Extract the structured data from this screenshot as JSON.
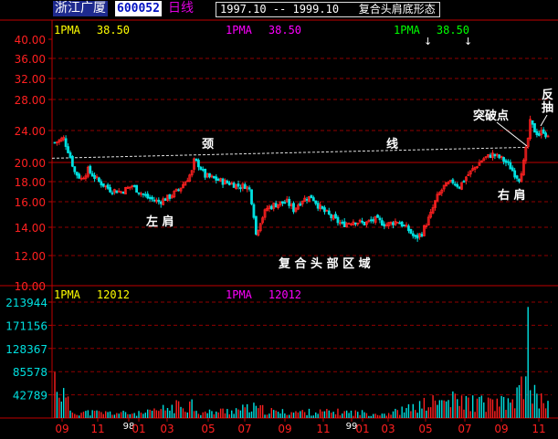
{
  "header": {
    "stock_name": "浙江广厦",
    "stock_code": "600052",
    "period": "日线",
    "date_range": "1997.10 -- 1999.10",
    "pattern_title": "复合头肩底形态"
  },
  "price_panel": {
    "ma_labels": [
      {
        "name": "1PMA",
        "value": "38.50",
        "color": "#ffff00"
      },
      {
        "name": "1PMA",
        "value": "38.50",
        "color": "#ff00ff"
      },
      {
        "name": "1PMA",
        "value": "38.50",
        "color": "#00ff00"
      }
    ],
    "arrows": [
      "↓",
      "↓"
    ],
    "annotations": {
      "neck": "颈",
      "line": "线",
      "left_shoulder": "左 肩",
      "right_shoulder": "右 肩",
      "head_zone": "复 合 头 部 区 域",
      "breakout": "突破点",
      "pullback": [
        "反",
        "抽"
      ]
    }
  },
  "volume_panel": {
    "ma_labels": [
      {
        "name": "1PMA",
        "value": "12012",
        "color": "#ffff00"
      },
      {
        "name": "1PMA",
        "value": "12012",
        "color": "#ff00ff"
      }
    ]
  },
  "colors": {
    "axis": "#c00000",
    "grid": "#900000",
    "up": "#ff2020",
    "down": "#00e0e0",
    "neckline": "#e0e0e0",
    "annotation": "#ffffff"
  },
  "chart_data": [
    {
      "type": "candlestick",
      "ylim": [
        10,
        40
      ],
      "y_ticks": [
        "40.00",
        "36.00",
        "32.00",
        "28.00",
        "24.00",
        "20.00",
        "18.00",
        "16.00",
        "14.00",
        "12.00",
        "10.00"
      ],
      "neckline": 20.3,
      "price_path": [
        [
          0,
          22.5
        ],
        [
          4,
          23.0
        ],
        [
          6,
          21.5
        ],
        [
          9,
          19.0
        ],
        [
          12,
          18.3
        ],
        [
          15,
          19.2
        ],
        [
          20,
          18.0
        ],
        [
          25,
          17.2
        ],
        [
          30,
          17.0
        ],
        [
          35,
          17.6
        ],
        [
          38,
          17.0
        ],
        [
          42,
          16.4
        ],
        [
          47,
          16.0
        ],
        [
          52,
          16.5
        ],
        [
          56,
          17.2
        ],
        [
          59,
          18.0
        ],
        [
          62,
          19.0
        ],
        [
          63,
          20.2
        ],
        [
          65,
          19.8
        ],
        [
          68,
          18.6
        ],
        [
          72,
          18.3
        ],
        [
          76,
          18.0
        ],
        [
          80,
          17.8
        ],
        [
          84,
          17.5
        ],
        [
          86,
          17.6
        ],
        [
          88,
          17.2
        ],
        [
          90,
          15.0
        ],
        [
          91,
          13.5
        ],
        [
          93,
          14.5
        ],
        [
          96,
          15.5
        ],
        [
          100,
          15.8
        ],
        [
          105,
          16.0
        ],
        [
          108,
          15.4
        ],
        [
          112,
          16.2
        ],
        [
          116,
          16.5
        ],
        [
          120,
          15.5
        ],
        [
          125,
          14.8
        ],
        [
          130,
          14.2
        ],
        [
          135,
          14.5
        ],
        [
          140,
          14.3
        ],
        [
          145,
          14.6
        ],
        [
          150,
          14.2
        ],
        [
          155,
          14.5
        ],
        [
          160,
          13.8
        ],
        [
          163,
          13.2
        ],
        [
          166,
          13.6
        ],
        [
          170,
          15.0
        ],
        [
          173,
          16.5
        ],
        [
          176,
          17.5
        ],
        [
          180,
          18.0
        ],
        [
          183,
          17.5
        ],
        [
          186,
          18.5
        ],
        [
          190,
          19.5
        ],
        [
          194,
          20.5
        ],
        [
          198,
          21.0
        ],
        [
          202,
          20.5
        ],
        [
          206,
          19.5
        ],
        [
          208,
          18.8
        ],
        [
          210,
          18.3
        ],
        [
          212,
          20.0
        ],
        [
          214,
          23.0
        ],
        [
          215,
          25.0
        ],
        [
          217,
          24.0
        ],
        [
          219,
          23.5
        ],
        [
          221,
          24.0
        ],
        [
          223,
          23.0
        ]
      ]
    },
    {
      "type": "bar",
      "ylim": [
        0,
        213944
      ],
      "y_ticks": [
        "213944",
        "171156",
        "128367",
        "85578",
        "42789"
      ],
      "x_tick_labels": [
        "09",
        "11",
        "98",
        "01",
        "03",
        "05",
        "07",
        "09",
        "11",
        "99",
        "01",
        "03",
        "05",
        "07",
        "09",
        "11",
        "11"
      ],
      "volume_profile": [
        [
          0,
          80000
        ],
        [
          4,
          45000
        ],
        [
          8,
          12000
        ],
        [
          40,
          9000
        ],
        [
          62,
          30000
        ],
        [
          66,
          10000
        ],
        [
          90,
          20000
        ],
        [
          100,
          12000
        ],
        [
          130,
          12000
        ],
        [
          150,
          9000
        ],
        [
          160,
          18000
        ],
        [
          170,
          30000
        ],
        [
          180,
          35000
        ],
        [
          192,
          30000
        ],
        [
          205,
          28000
        ],
        [
          212,
          60000
        ],
        [
          214,
          200000
        ],
        [
          216,
          45000
        ],
        [
          223,
          30000
        ]
      ]
    }
  ]
}
